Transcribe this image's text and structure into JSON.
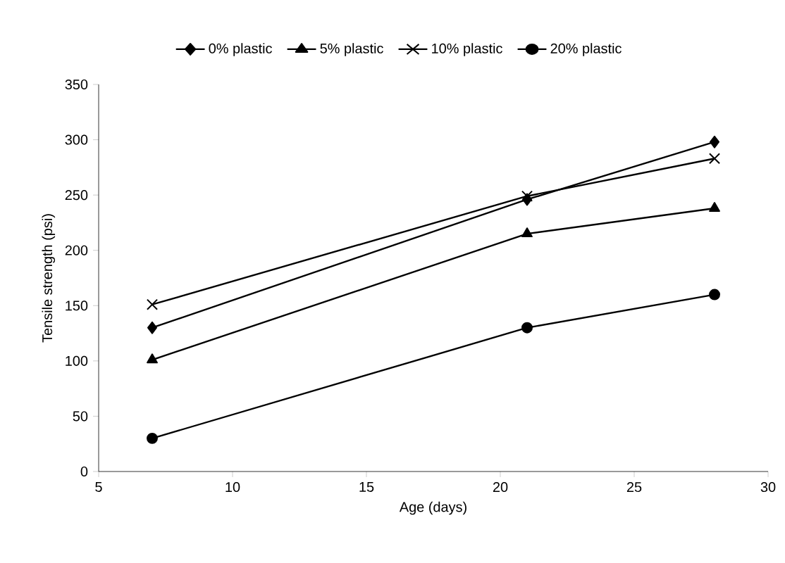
{
  "chart_data": {
    "type": "line",
    "xlabel": "Age (days)",
    "ylabel": "Tensile strength (psi)",
    "x": [
      7,
      21,
      28
    ],
    "series": [
      {
        "name": "0% plastic",
        "color": "#000000",
        "marker": "diamond",
        "values": [
          130,
          246,
          298
        ]
      },
      {
        "name": "5% plastic",
        "color": "#000000",
        "marker": "triangle",
        "values": [
          101,
          215,
          238
        ]
      },
      {
        "name": "10% plastic",
        "color": "#000000",
        "marker": "cross",
        "values": [
          151,
          249,
          283
        ]
      },
      {
        "name": "20% plastic",
        "color": "#000000",
        "marker": "circle",
        "values": [
          30,
          130,
          160
        ]
      }
    ],
    "xlim": [
      5,
      30
    ],
    "xticks": [
      5,
      10,
      15,
      20,
      25,
      30
    ],
    "ylim": [
      0,
      350
    ],
    "yticks": [
      0,
      50,
      100,
      150,
      200,
      250,
      300,
      350
    ],
    "grid": false,
    "legend": "top",
    "line_style": "solid"
  }
}
